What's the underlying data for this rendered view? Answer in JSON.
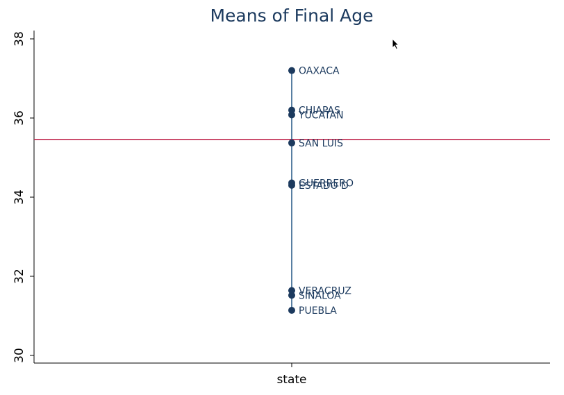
{
  "chart_data": {
    "type": "scatter",
    "title": "Means of Final Age",
    "xlabel": "state",
    "ylabel": "",
    "ylim": [
      30,
      38.2
    ],
    "yticks": [
      30,
      32,
      34,
      36,
      38
    ],
    "ytick_labels": [
      "30",
      "32",
      "34",
      "36",
      "38"
    ],
    "reference_line": {
      "y": 35.46,
      "color": "#c0294f"
    },
    "points": [
      {
        "label": "OAXACA",
        "y": 37.2
      },
      {
        "label": "CHIAPAS",
        "y": 36.2
      },
      {
        "label": "YUCATAN",
        "y": 36.08
      },
      {
        "label": "SAN LUIS",
        "y": 35.37
      },
      {
        "label": "GUERRERO",
        "y": 34.36
      },
      {
        "label": "ESTADO D",
        "y": 34.3
      },
      {
        "label": "VERACRUZ",
        "y": 31.64
      },
      {
        "label": "SINALOA",
        "y": 31.52
      },
      {
        "label": "PUEBLA",
        "y": 31.14
      }
    ],
    "colors": {
      "marker": "#1c3a5e",
      "connector": "#2e5f8a",
      "axis": "#000000"
    },
    "grid": false,
    "legend": "none"
  }
}
